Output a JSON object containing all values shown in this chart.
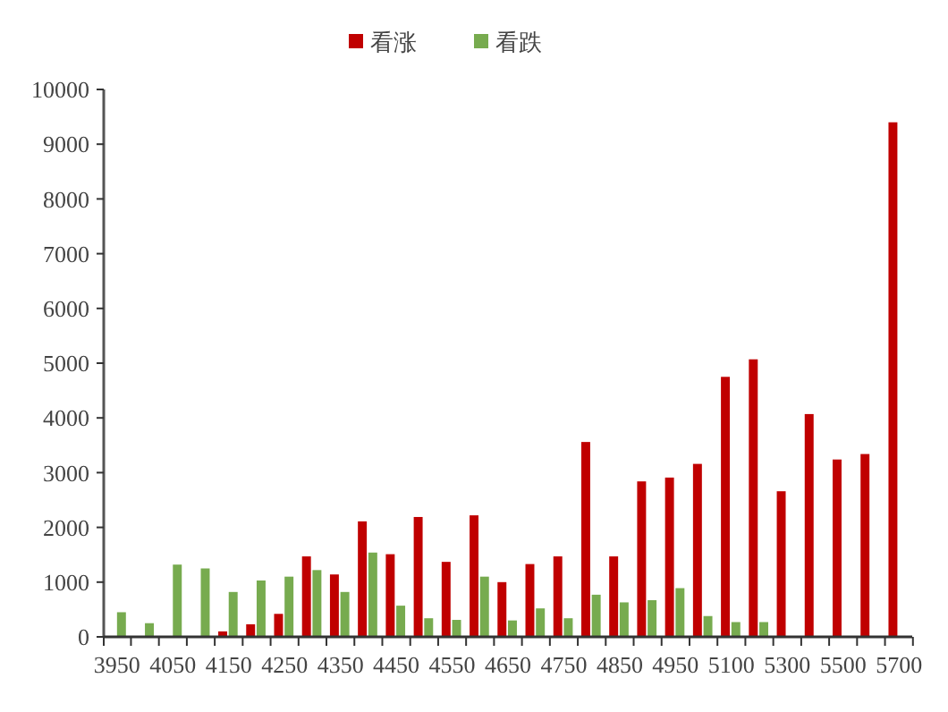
{
  "chart_data": {
    "type": "bar",
    "categories": [
      "3950",
      null,
      "4050",
      null,
      "4150",
      null,
      "4250",
      null,
      "4350",
      null,
      "4450",
      null,
      "4550",
      null,
      "4650",
      null,
      "4750",
      null,
      "4850",
      null,
      "4950",
      null,
      "5100",
      null,
      "5300",
      null,
      "5500",
      null,
      "5700"
    ],
    "series": [
      {
        "name": "看涨",
        "color": "#c00000",
        "values": [
          0,
          0,
          0,
          0,
          100,
          230,
          420,
          1470,
          1140,
          2110,
          1510,
          2190,
          1370,
          2220,
          1000,
          1330,
          1470,
          3560,
          1470,
          2840,
          2910,
          3160,
          4750,
          5070,
          2660,
          4070,
          3240,
          3340,
          9400
        ]
      },
      {
        "name": "看跌",
        "color": "#77ab4f",
        "values": [
          450,
          250,
          1320,
          1250,
          820,
          1030,
          1100,
          1220,
          820,
          1540,
          570,
          340,
          310,
          1100,
          300,
          520,
          340,
          770,
          630,
          670,
          890,
          380,
          270,
          270,
          null,
          null,
          10,
          0,
          0
        ]
      }
    ],
    "ylim": [
      0,
      10000
    ],
    "yticks": [
      0,
      1000,
      2000,
      3000,
      4000,
      5000,
      6000,
      7000,
      8000,
      9000,
      10000
    ],
    "grid": false,
    "legend": "top"
  }
}
